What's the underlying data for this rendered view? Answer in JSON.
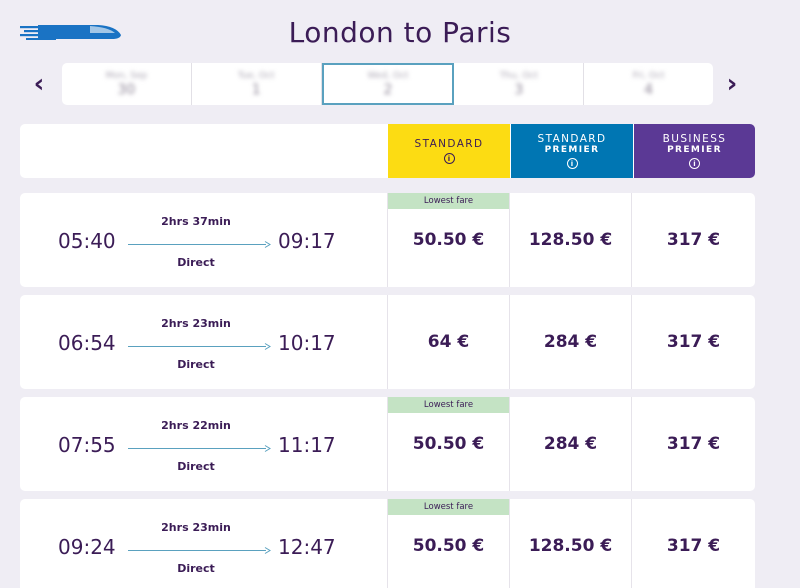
{
  "header": {
    "title": "London to Paris"
  },
  "date_strip": {
    "dates": [
      {
        "day": "Mon, Sep",
        "num": "30"
      },
      {
        "day": "Tue, Oct",
        "num": "1"
      },
      {
        "day": "Wed, Oct",
        "num": "2"
      },
      {
        "day": "Thu, Oct",
        "num": "3"
      },
      {
        "day": "Fri, Oct",
        "num": "4"
      }
    ],
    "selected_index": 2
  },
  "classes": {
    "standard": {
      "name": "STANDARD",
      "sub": ""
    },
    "standard_premier": {
      "name": "STANDARD",
      "sub": "PREMIER"
    },
    "business_premier": {
      "name": "BUSINESS",
      "sub": "PREMIER"
    },
    "info_glyph": "i"
  },
  "lowest_fare_label": "Lowest fare",
  "journeys": [
    {
      "depart": "05:40",
      "arrive": "09:17",
      "duration": "2hrs 37min",
      "stops": "Direct",
      "standard": "50.50 €",
      "premier": "128.50 €",
      "business": "317 €",
      "lowest": true
    },
    {
      "depart": "06:54",
      "arrive": "10:17",
      "duration": "2hrs 23min",
      "stops": "Direct",
      "standard": "64 €",
      "premier": "284 €",
      "business": "317 €",
      "lowest": false
    },
    {
      "depart": "07:55",
      "arrive": "11:17",
      "duration": "2hrs 22min",
      "stops": "Direct",
      "standard": "50.50 €",
      "premier": "284 €",
      "business": "317 €",
      "lowest": true
    },
    {
      "depart": "09:24",
      "arrive": "12:47",
      "duration": "2hrs 23min",
      "stops": "Direct",
      "standard": "50.50 €",
      "premier": "128.50 €",
      "business": "317 €",
      "lowest": true
    }
  ],
  "colors": {
    "standard": "#fcdc13",
    "standard_premier": "#0076b3",
    "business_premier": "#5b3995",
    "lowest_badge": "#c4e3c4",
    "text": "#3b1c56"
  },
  "icons": {
    "logo": "eurostar-train-logo",
    "prev": "chevron-left-icon",
    "next": "chevron-right-icon"
  }
}
